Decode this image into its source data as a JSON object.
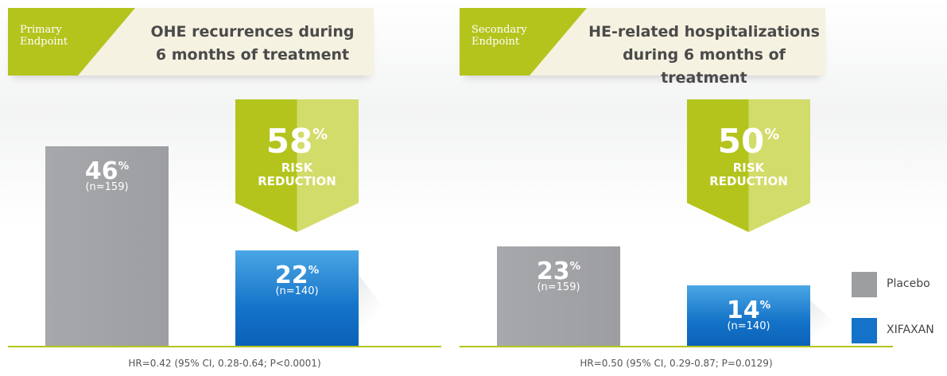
{
  "chart_data": [
    {
      "type": "bar",
      "tag": "Primary\nEndpoint",
      "title": "OHE recurrences during\n6 months of treatment",
      "series": [
        {
          "name": "Placebo",
          "color": "#9d9ea2",
          "values": [
            46
          ],
          "value_labels": [
            "46%"
          ],
          "sample_labels": [
            "(n=159)"
          ]
        },
        {
          "name": "XIFAXAN",
          "color": "#1473c8",
          "values": [
            22
          ],
          "value_labels": [
            "22%"
          ],
          "sample_labels": [
            "(n=140)"
          ]
        }
      ],
      "risk_reduction": {
        "value": 58,
        "label": "58%",
        "text": "RISK\nREDUCTION"
      },
      "footnote": "HR=0.42 (95% CI, 0.28-0.64; P<0.0001)"
    },
    {
      "type": "bar",
      "tag": "Secondary\nEndpoint",
      "title": "HE-related hospitalizations\nduring 6 months of treatment",
      "series": [
        {
          "name": "Placebo",
          "color": "#9d9ea2",
          "values": [
            23
          ],
          "value_labels": [
            "23%"
          ],
          "sample_labels": [
            "(n=159)"
          ]
        },
        {
          "name": "XIFAXAN",
          "color": "#1473c8",
          "values": [
            14
          ],
          "value_labels": [
            "14%"
          ],
          "sample_labels": [
            "(n=140)"
          ]
        }
      ],
      "risk_reduction": {
        "value": 50,
        "label": "50%",
        "text": "RISK\nREDUCTION"
      },
      "footnote": "HR=0.50 (95% CI, 0.29-0.87; P=0.0129)"
    }
  ]
}
